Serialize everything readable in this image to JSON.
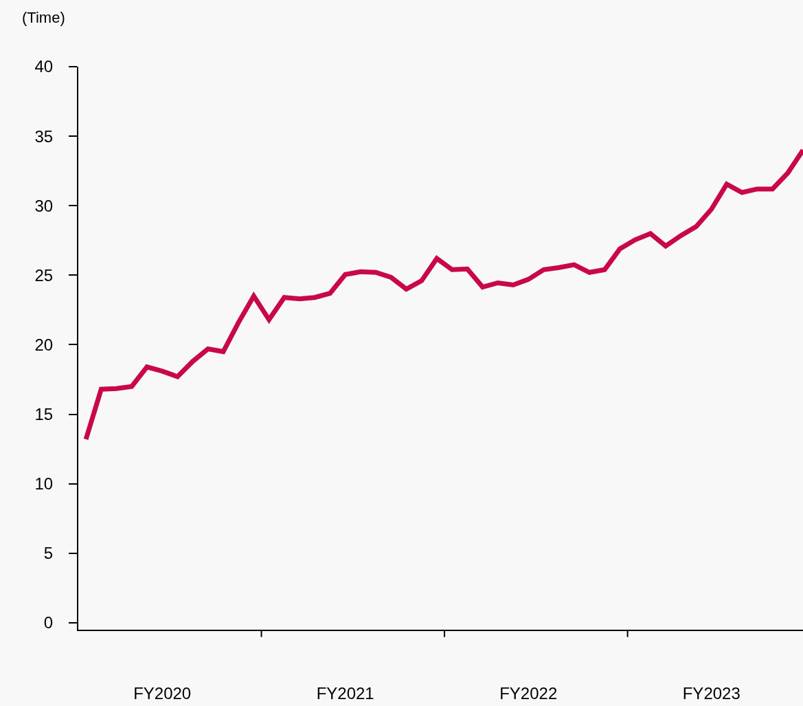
{
  "chart_data": {
    "type": "line",
    "ylabel": "(Time)",
    "categories": [
      null,
      null,
      null,
      null,
      null,
      "FY2020",
      null,
      null,
      null,
      null,
      null,
      null,
      null,
      null,
      null,
      null,
      null,
      "FY2021",
      null,
      null,
      null,
      null,
      null,
      null,
      null,
      null,
      null,
      null,
      null,
      "FY2022",
      null,
      null,
      null,
      null,
      null,
      null,
      null,
      null,
      null,
      null,
      null,
      "FY2023",
      null,
      null,
      null,
      null,
      null,
      null
    ],
    "series": [
      {
        "color": "#c8084a",
        "values": [
          13.2,
          16.8,
          16.85,
          17.0,
          18.4,
          18.1,
          17.7,
          18.8,
          19.7,
          19.5,
          21.6,
          23.5,
          21.8,
          23.4,
          23.3,
          23.4,
          23.7,
          25.05,
          25.25,
          25.2,
          24.85,
          24.0,
          24.6,
          26.2,
          25.4,
          25.45,
          24.15,
          24.45,
          24.3,
          24.7,
          25.4,
          25.55,
          25.75,
          25.2,
          25.4,
          26.9,
          27.55,
          28.0,
          27.1,
          27.85,
          28.5,
          29.75,
          31.55,
          30.95,
          31.2,
          31.2,
          32.35,
          34.0
        ]
      }
    ],
    "ylim": [
      -0.5,
      40
    ],
    "yticks": [
      0,
      5,
      10,
      15,
      20,
      25,
      30,
      35,
      40
    ],
    "grid": false,
    "marker": "none",
    "line_style": "solid"
  }
}
